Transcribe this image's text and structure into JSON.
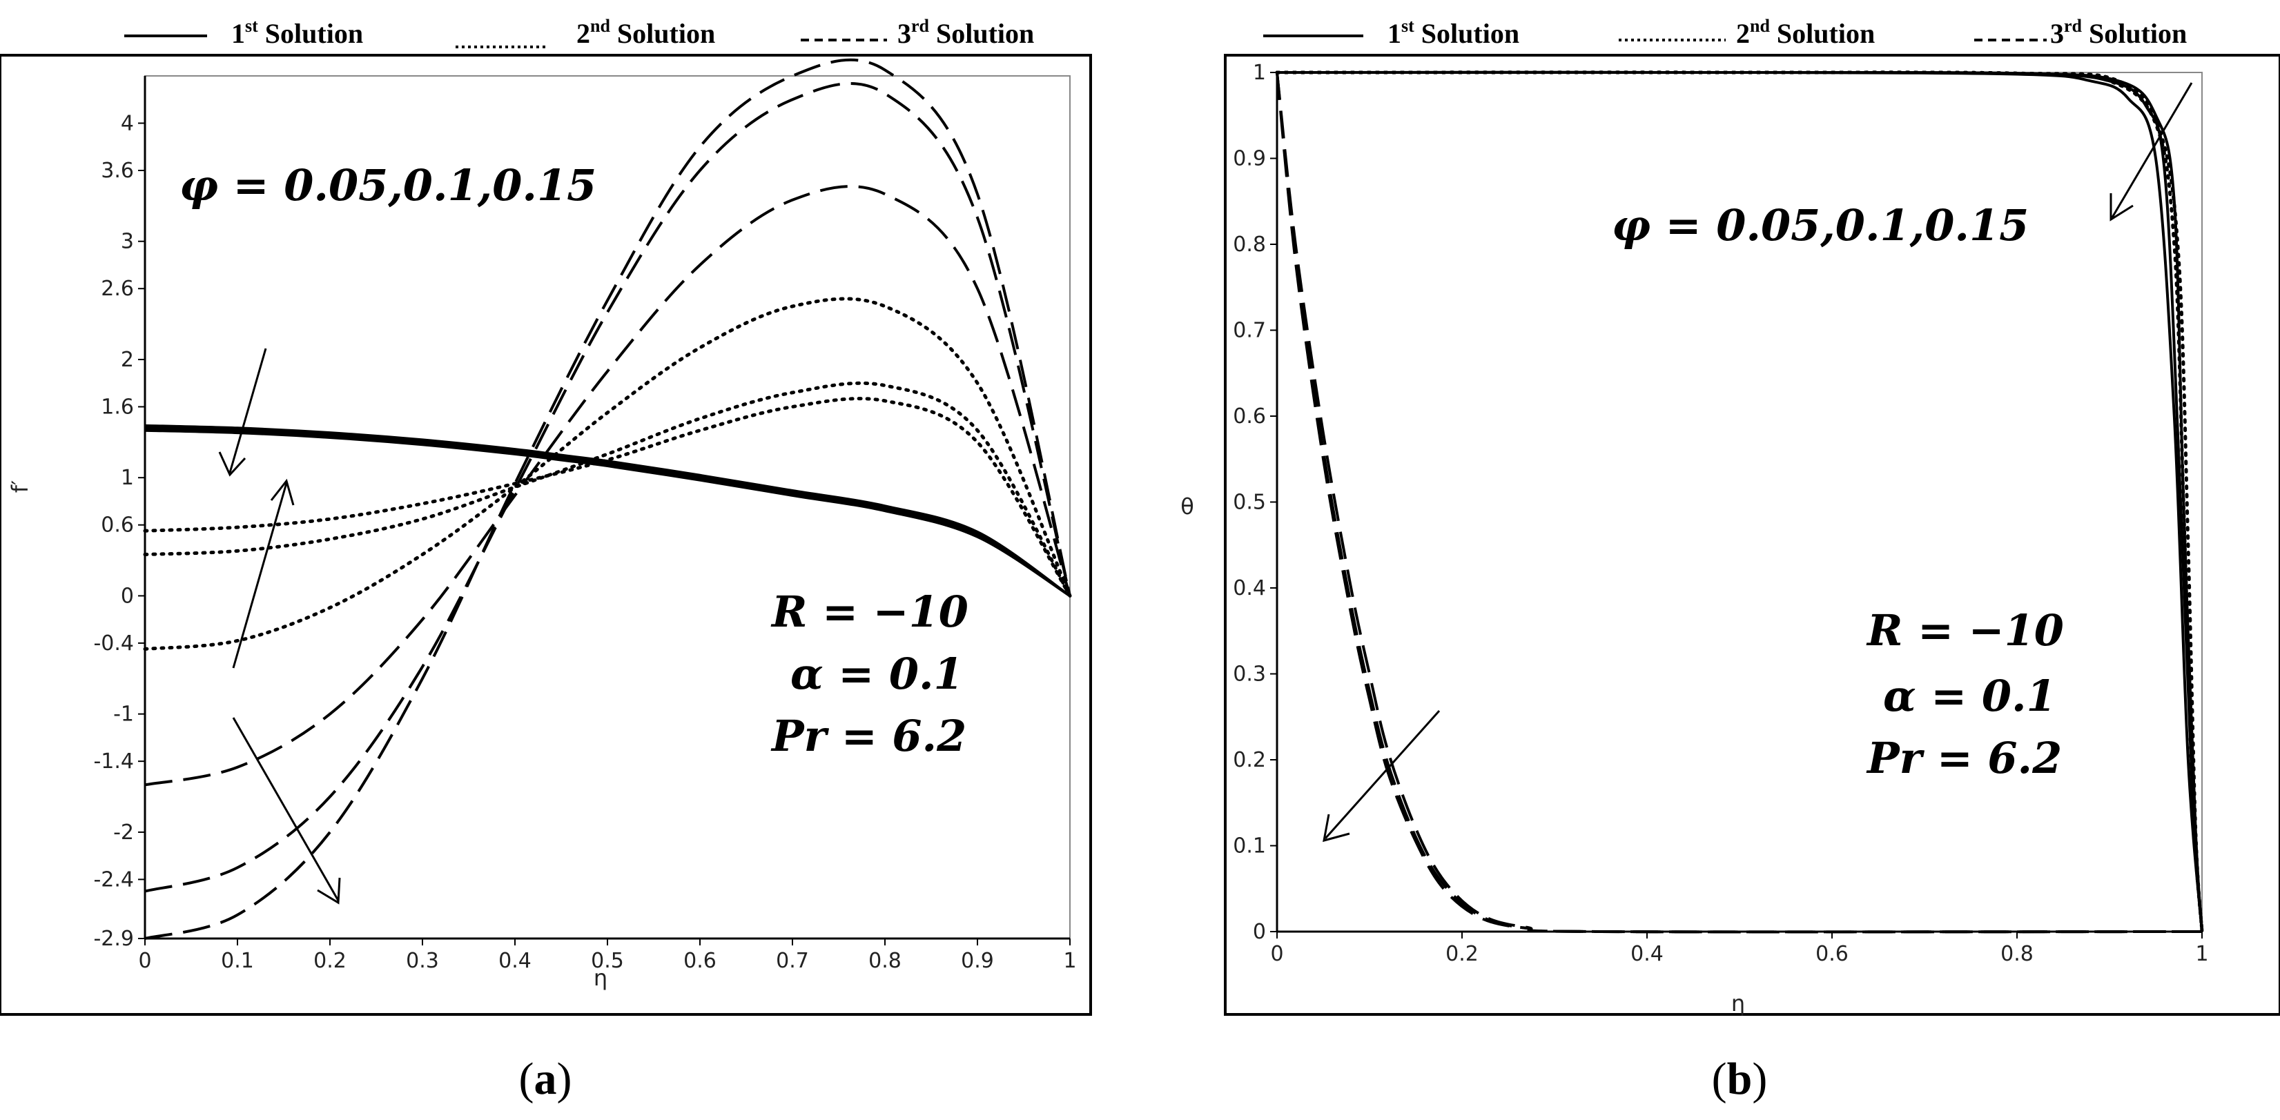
{
  "chart_data": [
    {
      "type": "line",
      "panel": "(a)",
      "xlabel": "η",
      "ylabel": "f′",
      "xlim": [
        0,
        1
      ],
      "ylim": [
        -2.9,
        4.4
      ],
      "xticks": [
        "0",
        "0.1",
        "0.2",
        "0.3",
        "0.4",
        "0.5",
        "0.6",
        "0.7",
        "0.8",
        "0.9",
        "1"
      ],
      "yticks": [
        "-2.9",
        "-2.4",
        "-2",
        "-1.4",
        "-1",
        "-0.4",
        "0",
        "0.6",
        "1",
        "1.6",
        "2",
        "2.6",
        "3",
        "3.6",
        "4"
      ],
      "ytick_values": [
        -2.9,
        -2.4,
        -2,
        -1.4,
        -1,
        -0.4,
        0,
        0.6,
        1,
        1.6,
        2,
        2.6,
        3,
        3.6,
        4
      ],
      "legend": [
        {
          "base": "1",
          "sup": "st",
          "text": "Solution",
          "style": "solid"
        },
        {
          "base": "2",
          "sup": "nd",
          "text": "Solution",
          "style": "dotted"
        },
        {
          "base": "3",
          "sup": "rd",
          "text": "Solution",
          "style": "dashed"
        }
      ],
      "annotations": {
        "phi": "φ = 0.05,0.1,0.15",
        "R": "R = −10",
        "alpha": "α = 0.1",
        "Pr": "Pr = 6.2"
      },
      "series": [
        {
          "style": "solid",
          "x": [
            0,
            0.1,
            0.2,
            0.3,
            0.4,
            0.45,
            0.5,
            0.6,
            0.7,
            0.8,
            0.9,
            1
          ],
          "y": [
            1.4,
            1.38,
            1.34,
            1.28,
            1.2,
            1.15,
            1.1,
            0.98,
            0.85,
            0.72,
            0.5,
            0
          ]
        },
        {
          "style": "solid",
          "x": [
            0,
            0.1,
            0.2,
            0.3,
            0.4,
            0.45,
            0.5,
            0.6,
            0.7,
            0.8,
            0.9,
            1
          ],
          "y": [
            1.42,
            1.4,
            1.36,
            1.3,
            1.22,
            1.17,
            1.12,
            1.0,
            0.87,
            0.74,
            0.52,
            0
          ]
        },
        {
          "style": "solid",
          "x": [
            0,
            0.1,
            0.2,
            0.3,
            0.4,
            0.45,
            0.5,
            0.6,
            0.7,
            0.8,
            0.9,
            1
          ],
          "y": [
            1.44,
            1.42,
            1.38,
            1.32,
            1.24,
            1.19,
            1.14,
            1.02,
            0.89,
            0.76,
            0.54,
            0
          ]
        },
        {
          "style": "dotted",
          "x": [
            0,
            0.1,
            0.2,
            0.3,
            0.4,
            0.5,
            0.6,
            0.7,
            0.8,
            0.9,
            1
          ],
          "y": [
            0.55,
            0.58,
            0.65,
            0.78,
            0.95,
            1.15,
            1.4,
            1.6,
            1.65,
            1.3,
            0
          ]
        },
        {
          "style": "dotted",
          "x": [
            0,
            0.1,
            0.2,
            0.3,
            0.4,
            0.5,
            0.6,
            0.7,
            0.8,
            0.9,
            1
          ],
          "y": [
            0.35,
            0.38,
            0.48,
            0.65,
            0.92,
            1.2,
            1.5,
            1.72,
            1.78,
            1.4,
            0
          ]
        },
        {
          "style": "dotted",
          "x": [
            0,
            0.1,
            0.2,
            0.3,
            0.4,
            0.5,
            0.6,
            0.7,
            0.8,
            0.9,
            1
          ],
          "y": [
            -0.45,
            -0.38,
            -0.1,
            0.35,
            0.92,
            1.55,
            2.1,
            2.45,
            2.45,
            1.8,
            0
          ]
        },
        {
          "style": "dashed",
          "x": [
            0,
            0.1,
            0.2,
            0.3,
            0.4,
            0.5,
            0.6,
            0.7,
            0.8,
            0.9,
            1
          ],
          "y": [
            -1.6,
            -1.45,
            -1.0,
            -0.2,
            0.85,
            1.9,
            2.8,
            3.35,
            3.4,
            2.6,
            0
          ]
        },
        {
          "style": "dashed",
          "x": [
            0,
            0.1,
            0.2,
            0.3,
            0.4,
            0.5,
            0.6,
            0.7,
            0.8,
            0.9,
            1
          ],
          "y": [
            -2.5,
            -2.3,
            -1.7,
            -0.6,
            0.9,
            2.4,
            3.6,
            4.2,
            4.25,
            3.2,
            0
          ]
        },
        {
          "style": "dashed",
          "x": [
            0,
            0.1,
            0.2,
            0.3,
            0.4,
            0.5,
            0.6,
            0.7,
            0.8,
            0.9,
            1
          ],
          "y": [
            -2.9,
            -2.7,
            -2.0,
            -0.7,
            0.95,
            2.5,
            3.8,
            4.4,
            4.45,
            3.4,
            0
          ]
        }
      ]
    },
    {
      "type": "line",
      "panel": "(b)",
      "xlabel": "η",
      "ylabel": "θ",
      "xlim": [
        0,
        1
      ],
      "ylim": [
        0,
        1
      ],
      "xticks": [
        "0",
        "0.2",
        "0.4",
        "0.6",
        "0.8",
        "1"
      ],
      "yticks": [
        "0",
        "0.1",
        "0.2",
        "0.3",
        "0.4",
        "0.5",
        "0.6",
        "0.7",
        "0.8",
        "0.9",
        "1"
      ],
      "legend": [
        {
          "base": "1",
          "sup": "st",
          "text": "Solution",
          "style": "solid"
        },
        {
          "base": "2",
          "sup": "nd",
          "text": "Solution",
          "style": "dotted"
        },
        {
          "base": "3",
          "sup": "rd",
          "text": "Solution",
          "style": "dashed"
        }
      ],
      "annotations": {
        "phi": "φ = 0.05,0.1,0.15",
        "R": "R = −10",
        "alpha": "α = 0.1",
        "Pr": "Pr = 6.2"
      },
      "series": [
        {
          "style": "solid",
          "x": [
            0,
            0.5,
            0.8,
            0.88,
            0.92,
            0.95,
            0.97,
            0.985,
            1
          ],
          "y": [
            1,
            1,
            0.998,
            0.99,
            0.97,
            0.9,
            0.6,
            0.2,
            0
          ]
        },
        {
          "style": "solid",
          "x": [
            0,
            0.5,
            0.8,
            0.9,
            0.94,
            0.96,
            0.975,
            0.99,
            1
          ],
          "y": [
            1,
            1,
            0.999,
            0.99,
            0.96,
            0.88,
            0.55,
            0.15,
            0
          ]
        },
        {
          "style": "solid",
          "x": [
            0,
            0.5,
            0.8,
            0.91,
            0.95,
            0.97,
            0.98,
            0.993,
            1
          ],
          "y": [
            1,
            1,
            0.999,
            0.99,
            0.95,
            0.85,
            0.5,
            0.12,
            0
          ]
        },
        {
          "style": "dotted",
          "x": [
            0,
            0.5,
            0.8,
            0.9,
            0.95,
            0.97,
            0.98,
            0.99,
            1
          ],
          "y": [
            1,
            1,
            0.999,
            0.99,
            0.94,
            0.8,
            0.5,
            0.15,
            0
          ]
        },
        {
          "style": "dotted",
          "x": [
            0,
            0.5,
            0.8,
            0.91,
            0.955,
            0.975,
            0.985,
            0.993,
            1
          ],
          "y": [
            1,
            1,
            0.999,
            0.99,
            0.93,
            0.78,
            0.45,
            0.12,
            0
          ]
        },
        {
          "style": "dashed",
          "x": [
            0,
            0.02,
            0.05,
            0.08,
            0.1,
            0.12,
            0.15,
            0.18,
            0.22,
            0.27,
            0.35,
            1
          ],
          "y": [
            1,
            0.8,
            0.58,
            0.4,
            0.3,
            0.21,
            0.12,
            0.06,
            0.02,
            0.005,
            0,
            0
          ]
        },
        {
          "style": "dashed",
          "x": [
            0,
            0.02,
            0.05,
            0.08,
            0.1,
            0.12,
            0.15,
            0.18,
            0.22,
            0.27,
            0.35,
            1
          ],
          "y": [
            1,
            0.79,
            0.56,
            0.38,
            0.28,
            0.195,
            0.11,
            0.055,
            0.018,
            0.004,
            0,
            0
          ]
        },
        {
          "style": "dashed",
          "x": [
            0,
            0.02,
            0.05,
            0.08,
            0.1,
            0.12,
            0.15,
            0.18,
            0.22,
            0.27,
            0.35,
            1
          ],
          "y": [
            1,
            0.78,
            0.55,
            0.37,
            0.27,
            0.185,
            0.105,
            0.05,
            0.016,
            0.004,
            0,
            0
          ]
        }
      ]
    }
  ],
  "captions": {
    "a": "a",
    "b": "b"
  }
}
